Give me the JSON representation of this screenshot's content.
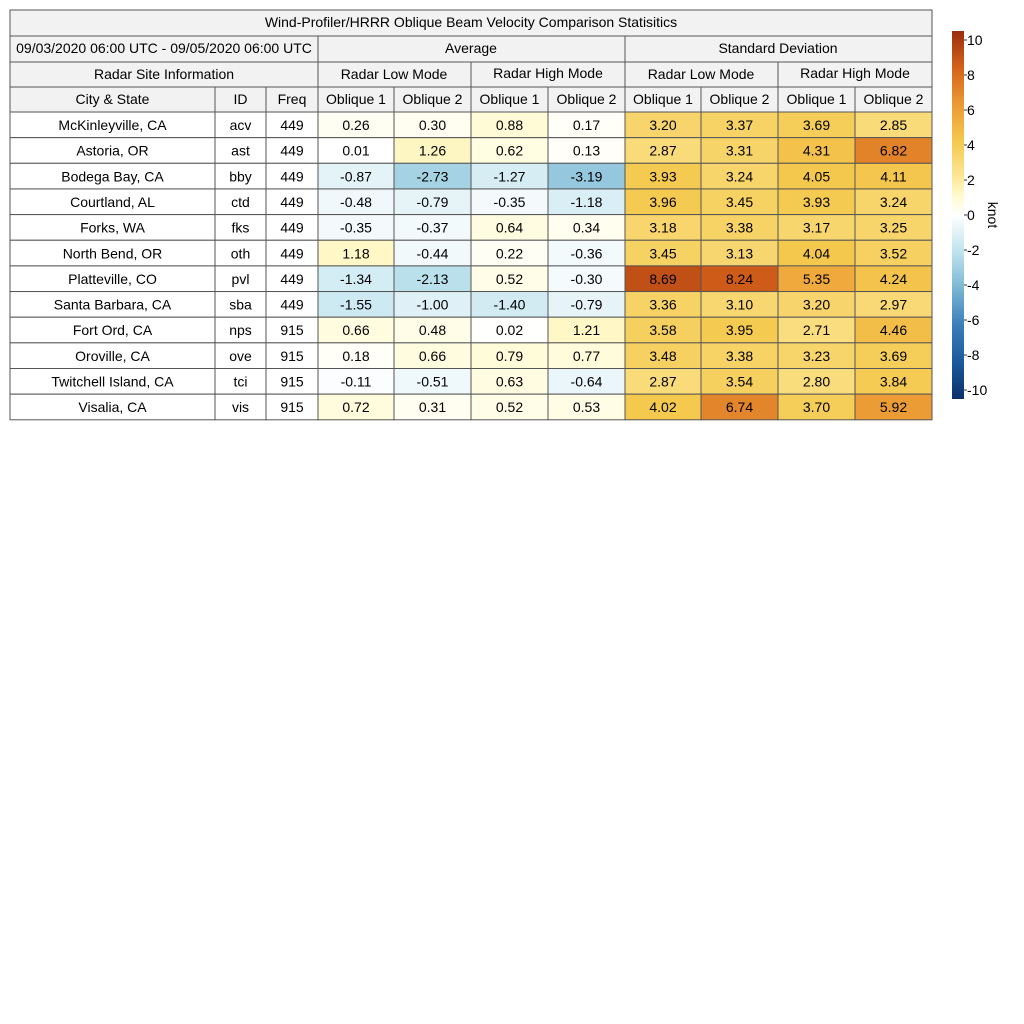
{
  "title": "Wind-Profiler/HRRR Oblique Beam Velocity Comparison Statisitics",
  "date_range": "09/03/2020 06:00 UTC - 09/05/2020 06:00 UTC",
  "group_headers": {
    "average": "Average",
    "stddev": "Standard Deviation"
  },
  "site_info_header": "Radar Site Information",
  "mode_headers": [
    "Radar Low Mode",
    "Radar High Mode",
    "Radar Low Mode",
    "Radar High Mode"
  ],
  "column_headers": [
    "City & State",
    "ID",
    "Freq",
    "Oblique 1",
    "Oblique 2",
    "Oblique 1",
    "Oblique 2",
    "Oblique 1",
    "Oblique 2",
    "Oblique 1",
    "Oblique 2"
  ],
  "colorbar": {
    "label": "knot",
    "min": -10,
    "max": 10,
    "ticks": [
      "10",
      "8",
      "6",
      "4",
      "2",
      "0",
      "-2",
      "-4",
      "-6",
      "-8",
      "-10"
    ]
  },
  "chart_data": {
    "type": "heatmap",
    "title": "Wind-Profiler/HRRR Oblique Beam Velocity Comparison Statisitics",
    "value_range": [
      -10,
      10
    ],
    "unit": "knot",
    "rows": [
      {
        "site": "McKinleyville, CA",
        "id": "acv",
        "freq": "449",
        "values": [
          "0.26",
          "0.30",
          "0.88",
          "0.17",
          "3.20",
          "3.37",
          "3.69",
          "2.85"
        ]
      },
      {
        "site": "Astoria, OR",
        "id": "ast",
        "freq": "449",
        "values": [
          "0.01",
          "1.26",
          "0.62",
          "0.13",
          "2.87",
          "3.31",
          "4.31",
          "6.82"
        ]
      },
      {
        "site": "Bodega Bay, CA",
        "id": "bby",
        "freq": "449",
        "values": [
          "-0.87",
          "-2.73",
          "-1.27",
          "-3.19",
          "3.93",
          "3.24",
          "4.05",
          "4.11"
        ]
      },
      {
        "site": "Courtland, AL",
        "id": "ctd",
        "freq": "449",
        "values": [
          "-0.48",
          "-0.79",
          "-0.35",
          "-1.18",
          "3.96",
          "3.45",
          "3.93",
          "3.24"
        ]
      },
      {
        "site": "Forks, WA",
        "id": "fks",
        "freq": "449",
        "values": [
          "-0.35",
          "-0.37",
          "0.64",
          "0.34",
          "3.18",
          "3.38",
          "3.17",
          "3.25"
        ]
      },
      {
        "site": "North Bend, OR",
        "id": "oth",
        "freq": "449",
        "values": [
          "1.18",
          "-0.44",
          "0.22",
          "-0.36",
          "3.45",
          "3.13",
          "4.04",
          "3.52"
        ]
      },
      {
        "site": "Platteville, CO",
        "id": "pvl",
        "freq": "449",
        "values": [
          "-1.34",
          "-2.13",
          "0.52",
          "-0.30",
          "8.69",
          "8.24",
          "5.35",
          "4.24"
        ]
      },
      {
        "site": "Santa Barbara, CA",
        "id": "sba",
        "freq": "449",
        "values": [
          "-1.55",
          "-1.00",
          "-1.40",
          "-0.79",
          "3.36",
          "3.10",
          "3.20",
          "2.97"
        ]
      },
      {
        "site": "Fort Ord, CA",
        "id": "nps",
        "freq": "915",
        "values": [
          "0.66",
          "0.48",
          "0.02",
          "1.21",
          "3.58",
          "3.95",
          "2.71",
          "4.46"
        ]
      },
      {
        "site": "Oroville, CA",
        "id": "ove",
        "freq": "915",
        "values": [
          "0.18",
          "0.66",
          "0.79",
          "0.77",
          "3.48",
          "3.38",
          "3.23",
          "3.69"
        ]
      },
      {
        "site": "Twitchell Island, CA",
        "id": "tci",
        "freq": "915",
        "values": [
          "-0.11",
          "-0.51",
          "0.63",
          "-0.64",
          "2.87",
          "3.54",
          "2.80",
          "3.84"
        ]
      },
      {
        "site": "Visalia, CA",
        "id": "vis",
        "freq": "915",
        "values": [
          "0.72",
          "0.31",
          "0.52",
          "0.53",
          "4.02",
          "6.74",
          "3.70",
          "5.92"
        ]
      }
    ]
  }
}
